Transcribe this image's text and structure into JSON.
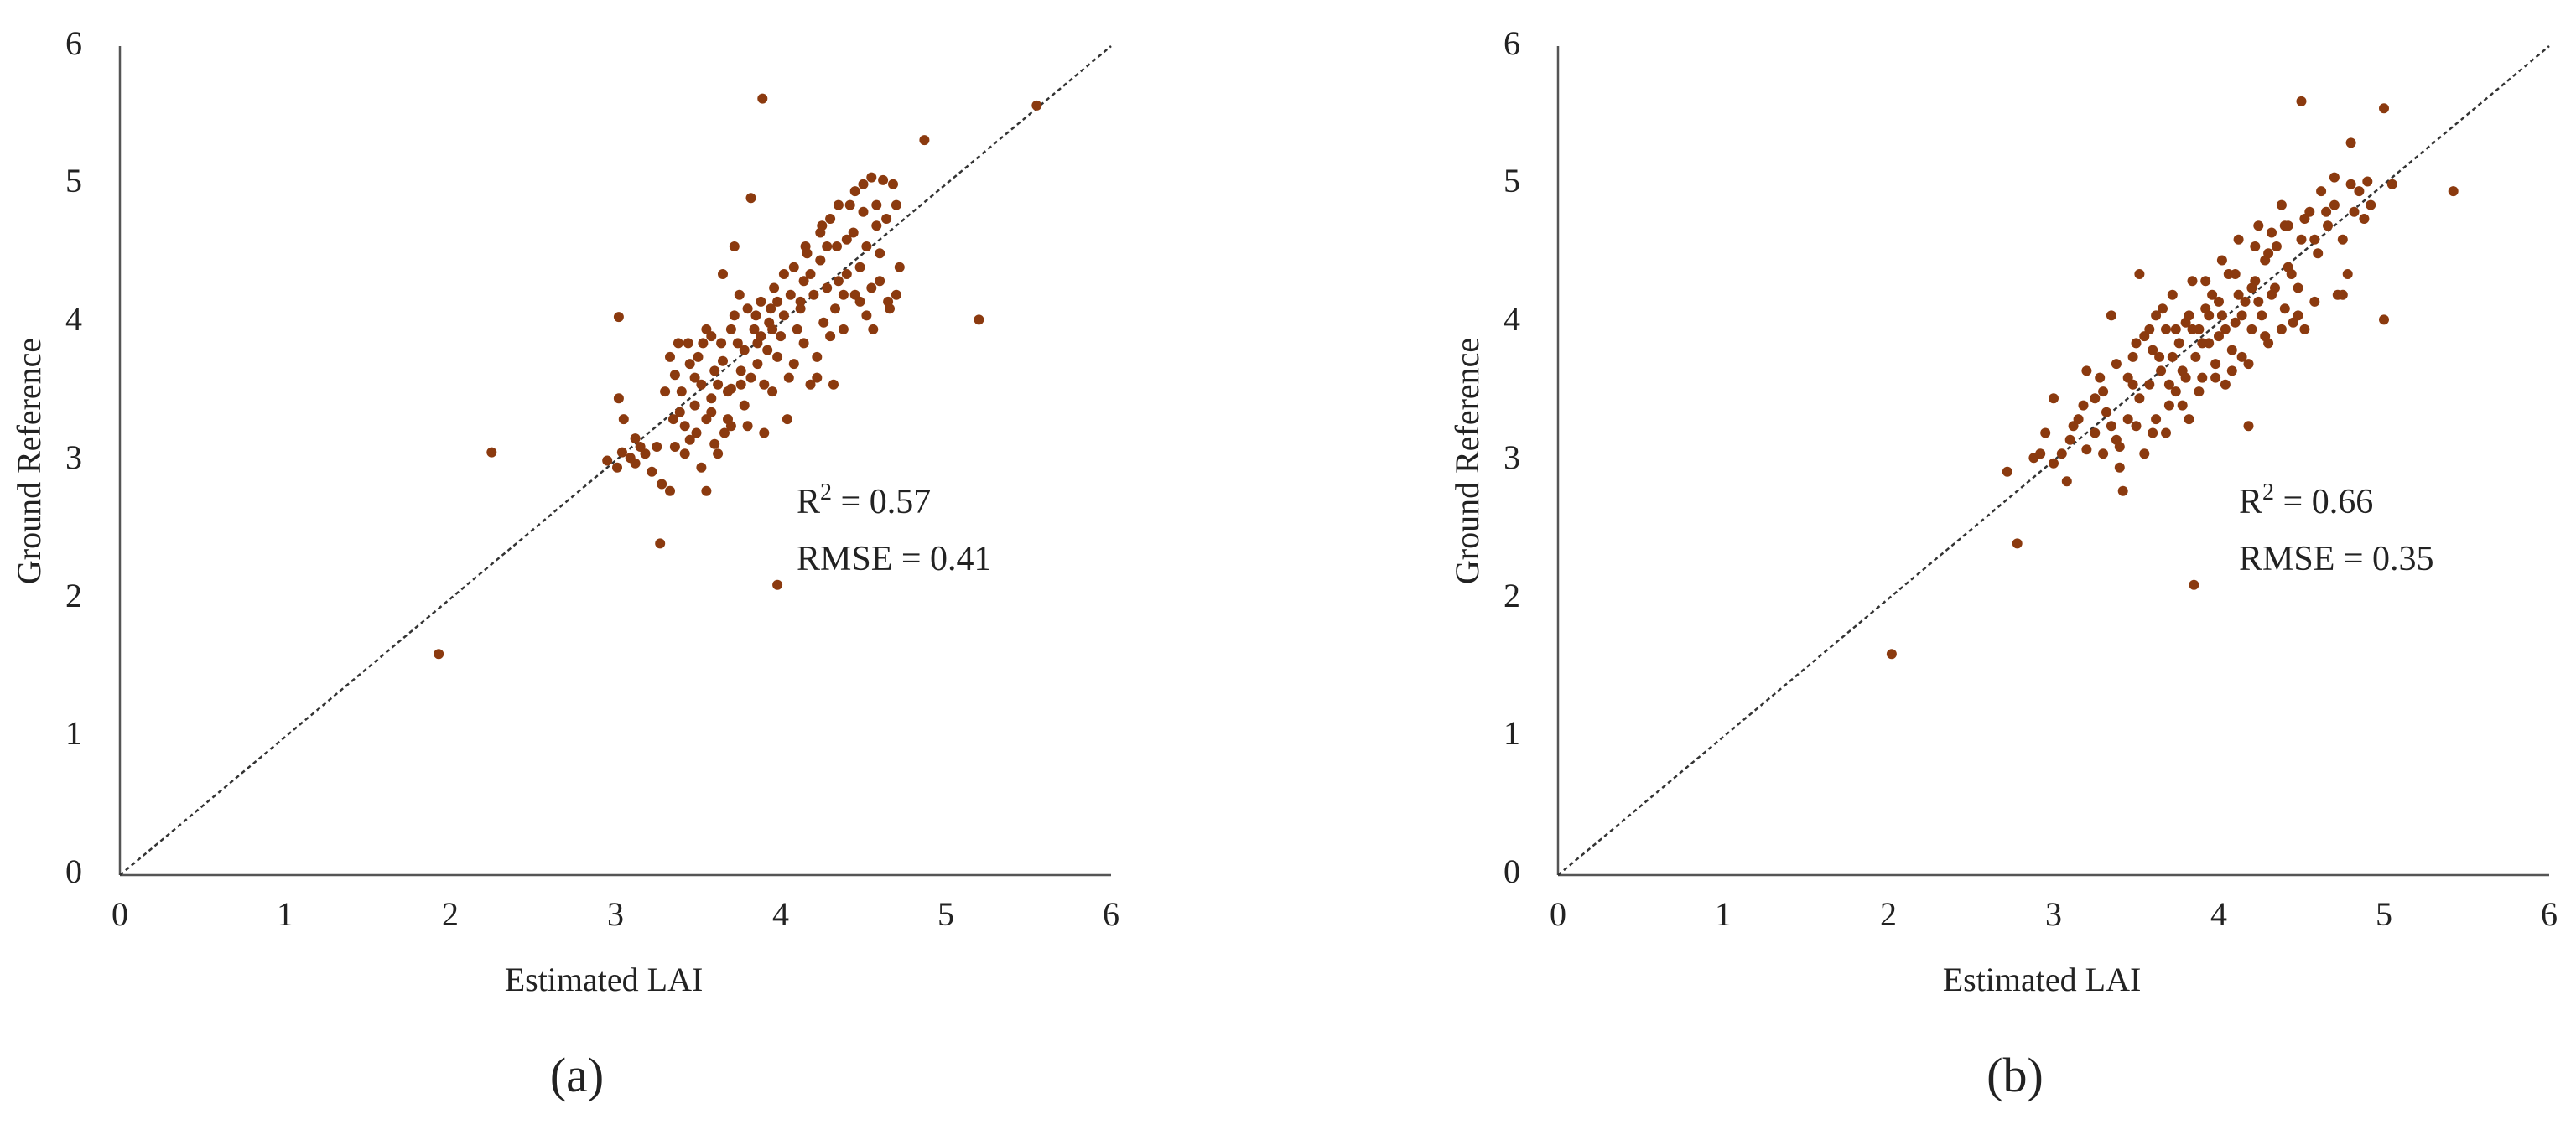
{
  "colors": {
    "point": "#8B3A0F",
    "axis": "#555555",
    "identity_line": "#333333",
    "text": "#222222"
  },
  "chart_data": [
    {
      "type": "scatter",
      "panel_label": "(a)",
      "xlabel": "Estimated LAI",
      "ylabel": "Ground Reference",
      "xlim": [
        0,
        6
      ],
      "ylim": [
        0,
        6
      ],
      "x_ticks": [
        "0",
        "1",
        "2",
        "3",
        "4",
        "5",
        "6"
      ],
      "y_ticks": [
        "0",
        "1",
        "2",
        "3",
        "4",
        "5",
        "6"
      ],
      "grid": false,
      "identity_line": true,
      "stats": {
        "r2_prefix": "R",
        "r2_sup": "2",
        "r2_value": " = 0.57",
        "rmse": "RMSE = 0.41"
      },
      "points": [
        [
          1.93,
          1.6
        ],
        [
          2.25,
          3.06
        ],
        [
          3.27,
          2.4
        ],
        [
          3.98,
          2.1
        ],
        [
          3.89,
          5.62
        ],
        [
          5.55,
          5.57
        ],
        [
          4.87,
          5.32
        ],
        [
          5.2,
          4.02
        ],
        [
          4.72,
          4.4
        ],
        [
          3.02,
          4.04
        ],
        [
          2.95,
          3.0
        ],
        [
          3.01,
          2.95
        ],
        [
          3.04,
          3.06
        ],
        [
          3.09,
          3.02
        ],
        [
          3.12,
          3.16
        ],
        [
          3.02,
          3.45
        ],
        [
          3.05,
          3.3
        ],
        [
          3.15,
          3.1
        ],
        [
          3.22,
          2.92
        ],
        [
          3.28,
          2.83
        ],
        [
          3.33,
          2.78
        ],
        [
          3.36,
          3.1
        ],
        [
          3.39,
          3.35
        ],
        [
          3.42,
          3.25
        ],
        [
          3.3,
          3.5
        ],
        [
          3.33,
          3.75
        ],
        [
          3.36,
          3.62
        ],
        [
          3.38,
          3.85
        ],
        [
          3.42,
          3.05
        ],
        [
          3.45,
          3.15
        ],
        [
          3.49,
          3.2
        ],
        [
          3.52,
          2.95
        ],
        [
          3.55,
          2.78
        ],
        [
          3.55,
          3.3
        ],
        [
          3.58,
          3.45
        ],
        [
          3.6,
          3.12
        ],
        [
          3.48,
          3.6
        ],
        [
          3.5,
          3.75
        ],
        [
          3.53,
          3.85
        ],
        [
          3.58,
          3.9
        ],
        [
          3.6,
          3.65
        ],
        [
          3.62,
          3.55
        ],
        [
          3.65,
          3.72
        ],
        [
          3.66,
          3.2
        ],
        [
          3.68,
          3.3
        ],
        [
          3.7,
          3.52
        ],
        [
          3.7,
          3.95
        ],
        [
          3.72,
          4.05
        ],
        [
          3.74,
          3.85
        ],
        [
          3.76,
          3.65
        ],
        [
          3.78,
          3.8
        ],
        [
          3.8,
          4.1
        ],
        [
          3.8,
          3.25
        ],
        [
          3.82,
          3.6
        ],
        [
          3.84,
          3.95
        ],
        [
          3.86,
          3.7
        ],
        [
          3.88,
          4.15
        ],
        [
          3.88,
          3.9
        ],
        [
          3.9,
          3.55
        ],
        [
          3.92,
          3.8
        ],
        [
          3.93,
          4.0
        ],
        [
          3.95,
          3.95
        ],
        [
          3.96,
          4.25
        ],
        [
          3.98,
          3.75
        ],
        [
          4.0,
          3.9
        ],
        [
          4.02,
          4.05
        ],
        [
          4.04,
          3.3
        ],
        [
          4.05,
          3.6
        ],
        [
          4.08,
          4.4
        ],
        [
          4.1,
          3.95
        ],
        [
          4.12,
          4.15
        ],
        [
          4.14,
          3.85
        ],
        [
          4.16,
          4.5
        ],
        [
          4.18,
          3.55
        ],
        [
          4.2,
          4.2
        ],
        [
          4.22,
          3.75
        ],
        [
          4.24,
          4.65
        ],
        [
          4.26,
          4.0
        ],
        [
          4.28,
          4.25
        ],
        [
          4.3,
          3.9
        ],
        [
          4.3,
          4.75
        ],
        [
          4.33,
          4.1
        ],
        [
          4.35,
          4.3
        ],
        [
          4.38,
          3.95
        ],
        [
          4.4,
          4.6
        ],
        [
          4.42,
          4.85
        ],
        [
          4.45,
          4.2
        ],
        [
          4.48,
          4.4
        ],
        [
          4.5,
          4.8
        ],
        [
          4.5,
          5.0
        ],
        [
          4.52,
          4.05
        ],
        [
          4.55,
          5.05
        ],
        [
          4.58,
          4.7
        ],
        [
          4.6,
          4.3
        ],
        [
          4.62,
          5.03
        ],
        [
          4.65,
          4.15
        ],
        [
          4.68,
          5.0
        ],
        [
          4.7,
          4.85
        ],
        [
          4.35,
          4.85
        ],
        [
          4.25,
          4.7
        ],
        [
          4.15,
          4.55
        ],
        [
          4.4,
          4.35
        ],
        [
          4.45,
          4.95
        ],
        [
          4.55,
          4.25
        ],
        [
          4.6,
          4.5
        ],
        [
          4.08,
          3.7
        ],
        [
          3.95,
          3.5
        ],
        [
          3.85,
          4.05
        ],
        [
          3.75,
          4.2
        ],
        [
          3.65,
          4.35
        ],
        [
          3.55,
          3.95
        ],
        [
          3.45,
          3.7
        ],
        [
          3.4,
          3.5
        ],
        [
          3.35,
          3.3
        ],
        [
          3.25,
          3.1
        ],
        [
          3.18,
          3.05
        ],
        [
          3.12,
          2.98
        ],
        [
          3.62,
          3.05
        ],
        [
          3.7,
          3.25
        ],
        [
          3.78,
          3.4
        ],
        [
          3.9,
          3.2
        ],
        [
          3.72,
          4.55
        ],
        [
          3.82,
          4.9
        ],
        [
          4.02,
          4.35
        ],
        [
          4.12,
          4.1
        ],
        [
          4.22,
          3.6
        ],
        [
          4.32,
          3.55
        ],
        [
          4.28,
          4.55
        ],
        [
          4.18,
          4.35
        ],
        [
          3.98,
          4.15
        ],
        [
          3.68,
          3.5
        ],
        [
          3.58,
          3.35
        ],
        [
          3.48,
          3.4
        ],
        [
          3.44,
          3.85
        ],
        [
          3.52,
          3.55
        ],
        [
          3.64,
          3.85
        ],
        [
          3.76,
          3.55
        ],
        [
          3.86,
          3.85
        ],
        [
          3.94,
          4.1
        ],
        [
          4.06,
          4.2
        ],
        [
          4.14,
          4.3
        ],
        [
          4.24,
          4.45
        ],
        [
          4.34,
          4.55
        ],
        [
          4.44,
          4.65
        ],
        [
          4.52,
          4.55
        ],
        [
          4.58,
          4.85
        ],
        [
          4.64,
          4.75
        ],
        [
          4.38,
          4.2
        ],
        [
          4.48,
          4.15
        ],
        [
          4.56,
          3.95
        ],
        [
          4.66,
          4.1
        ],
        [
          4.7,
          4.2
        ]
      ]
    },
    {
      "type": "scatter",
      "panel_label": "(b)",
      "xlabel": "Estimated LAI",
      "ylabel": "Ground Reference",
      "xlim": [
        0,
        6
      ],
      "ylim": [
        0,
        6
      ],
      "x_ticks": [
        "0",
        "1",
        "2",
        "3",
        "4",
        "5",
        "6"
      ],
      "y_ticks": [
        "0",
        "1",
        "2",
        "3",
        "4",
        "5",
        "6"
      ],
      "grid": false,
      "identity_line": true,
      "stats": {
        "r2_prefix": "R",
        "r2_sup": "2",
        "r2_value": " = 0.66",
        "rmse": "RMSE = 0.35"
      },
      "points": [
        [
          2.02,
          1.6
        ],
        [
          2.78,
          2.4
        ],
        [
          3.85,
          2.1
        ],
        [
          4.5,
          5.6
        ],
        [
          5.0,
          5.55
        ],
        [
          4.8,
          5.3
        ],
        [
          5.42,
          4.95
        ],
        [
          5.0,
          4.02
        ],
        [
          5.05,
          5.0
        ],
        [
          2.72,
          2.92
        ],
        [
          2.88,
          3.02
        ],
        [
          2.92,
          3.05
        ],
        [
          2.95,
          3.2
        ],
        [
          3.0,
          2.98
        ],
        [
          3.05,
          3.05
        ],
        [
          3.1,
          3.15
        ],
        [
          3.0,
          3.45
        ],
        [
          3.08,
          2.85
        ],
        [
          3.15,
          3.3
        ],
        [
          3.2,
          3.08
        ],
        [
          3.25,
          3.2
        ],
        [
          3.3,
          3.5
        ],
        [
          3.32,
          3.35
        ],
        [
          3.35,
          4.05
        ],
        [
          3.38,
          3.15
        ],
        [
          3.4,
          2.95
        ],
        [
          3.42,
          2.78
        ],
        [
          3.45,
          3.6
        ],
        [
          3.48,
          3.75
        ],
        [
          3.5,
          3.25
        ],
        [
          3.52,
          3.45
        ],
        [
          3.55,
          3.05
        ],
        [
          3.55,
          3.9
        ],
        [
          3.58,
          3.55
        ],
        [
          3.6,
          3.8
        ],
        [
          3.62,
          3.3
        ],
        [
          3.65,
          3.65
        ],
        [
          3.66,
          4.1
        ],
        [
          3.68,
          3.95
        ],
        [
          3.7,
          3.55
        ],
        [
          3.72,
          3.75
        ],
        [
          3.74,
          3.5
        ],
        [
          3.76,
          3.85
        ],
        [
          3.78,
          3.65
        ],
        [
          3.8,
          4.0
        ],
        [
          3.82,
          3.3
        ],
        [
          3.84,
          4.3
        ],
        [
          3.86,
          3.75
        ],
        [
          3.88,
          3.95
        ],
        [
          3.9,
          3.6
        ],
        [
          3.92,
          4.1
        ],
        [
          3.94,
          3.85
        ],
        [
          3.96,
          4.2
        ],
        [
          3.98,
          3.7
        ],
        [
          4.0,
          3.9
        ],
        [
          4.02,
          4.05
        ],
        [
          4.04,
          3.55
        ],
        [
          4.06,
          4.35
        ],
        [
          4.08,
          3.8
        ],
        [
          4.1,
          4.0
        ],
        [
          4.12,
          4.6
        ],
        [
          4.14,
          3.75
        ],
        [
          4.16,
          4.15
        ],
        [
          4.18,
          3.25
        ],
        [
          4.2,
          3.95
        ],
        [
          4.22,
          4.3
        ],
        [
          4.24,
          4.7
        ],
        [
          4.26,
          4.05
        ],
        [
          4.28,
          4.45
        ],
        [
          4.3,
          3.85
        ],
        [
          4.32,
          4.2
        ],
        [
          4.35,
          4.55
        ],
        [
          4.38,
          4.85
        ],
        [
          4.4,
          4.1
        ],
        [
          4.42,
          4.4
        ],
        [
          4.45,
          4.0
        ],
        [
          4.48,
          4.25
        ],
        [
          4.5,
          4.6
        ],
        [
          4.52,
          3.95
        ],
        [
          4.55,
          4.8
        ],
        [
          4.58,
          4.15
        ],
        [
          4.6,
          4.5
        ],
        [
          4.65,
          4.8
        ],
        [
          4.7,
          5.05
        ],
        [
          4.72,
          4.2
        ],
        [
          4.75,
          4.6
        ],
        [
          4.78,
          4.35
        ],
        [
          4.8,
          5.0
        ],
        [
          4.82,
          4.8
        ],
        [
          4.85,
          4.95
        ],
        [
          4.88,
          4.75
        ],
        [
          4.9,
          5.02
        ],
        [
          4.92,
          4.85
        ],
        [
          4.75,
          4.2
        ],
        [
          4.7,
          4.85
        ],
        [
          4.62,
          4.95
        ],
        [
          4.4,
          4.7
        ],
        [
          4.3,
          4.5
        ],
        [
          4.2,
          4.25
        ],
        [
          4.1,
          4.35
        ],
        [
          4.0,
          4.15
        ],
        [
          3.9,
          3.85
        ],
        [
          3.8,
          3.6
        ],
        [
          3.7,
          3.4
        ],
        [
          3.6,
          3.2
        ],
        [
          3.5,
          3.85
        ],
        [
          3.45,
          3.3
        ],
        [
          3.4,
          3.1
        ],
        [
          3.3,
          3.05
        ],
        [
          3.25,
          3.45
        ],
        [
          3.2,
          3.65
        ],
        [
          3.35,
          3.25
        ],
        [
          3.62,
          4.05
        ],
        [
          3.72,
          4.2
        ],
        [
          3.82,
          4.05
        ],
        [
          3.92,
          4.3
        ],
        [
          4.02,
          4.45
        ],
        [
          4.12,
          4.2
        ],
        [
          4.22,
          4.55
        ],
        [
          4.32,
          4.65
        ],
        [
          4.42,
          4.7
        ],
        [
          4.52,
          4.75
        ],
        [
          3.68,
          3.2
        ],
        [
          3.78,
          3.4
        ],
        [
          3.88,
          3.5
        ],
        [
          3.98,
          3.6
        ],
        [
          4.08,
          3.65
        ],
        [
          4.18,
          3.7
        ],
        [
          4.28,
          3.9
        ],
        [
          4.38,
          3.95
        ],
        [
          4.48,
          4.05
        ],
        [
          3.52,
          4.35
        ],
        [
          3.58,
          3.95
        ],
        [
          3.64,
          3.75
        ],
        [
          3.74,
          3.95
        ],
        [
          3.84,
          3.95
        ],
        [
          3.94,
          4.05
        ],
        [
          4.04,
          3.95
        ],
        [
          4.14,
          4.05
        ],
        [
          4.24,
          4.15
        ],
        [
          4.34,
          4.25
        ],
        [
          4.44,
          4.35
        ],
        [
          3.48,
          3.55
        ],
        [
          3.38,
          3.7
        ],
        [
          3.28,
          3.6
        ],
        [
          3.18,
          3.4
        ],
        [
          3.12,
          3.25
        ],
        [
          4.58,
          4.6
        ],
        [
          4.66,
          4.7
        ]
      ]
    }
  ]
}
